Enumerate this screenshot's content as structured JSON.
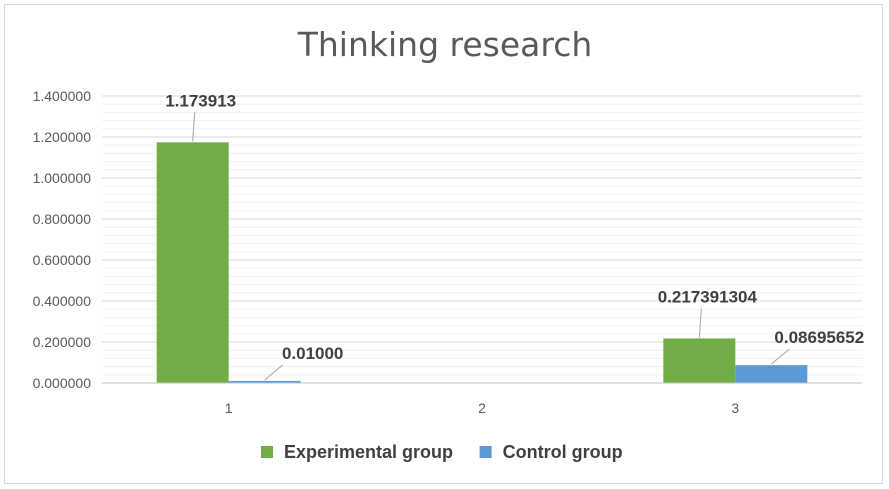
{
  "chart_data": {
    "type": "bar",
    "title": "Thinking research",
    "categories": [
      "1",
      "2",
      "3"
    ],
    "series": [
      {
        "name": "Experimental group",
        "color": "#70ad47",
        "values": [
          1.173913,
          null,
          0.217391304
        ],
        "labels": [
          "1.173913",
          "",
          "0.217391304"
        ]
      },
      {
        "name": "Control group",
        "color": "#5b9bd5",
        "values": [
          0.01,
          null,
          0.08695652
        ],
        "labels": [
          "0.01000",
          "",
          "0.08695652"
        ]
      }
    ],
    "ylim": [
      0,
      1.4
    ],
    "yticks": [
      0,
      0.2,
      0.4,
      0.6,
      0.8,
      1.0,
      1.2,
      1.4
    ],
    "ytick_labels": [
      "0.000000",
      "0.200000",
      "0.400000",
      "0.600000",
      "0.800000",
      "1.000000",
      "1.200000",
      "1.400000"
    ],
    "xlabel": "",
    "ylabel": "",
    "grid": true,
    "legend": "bottom"
  }
}
